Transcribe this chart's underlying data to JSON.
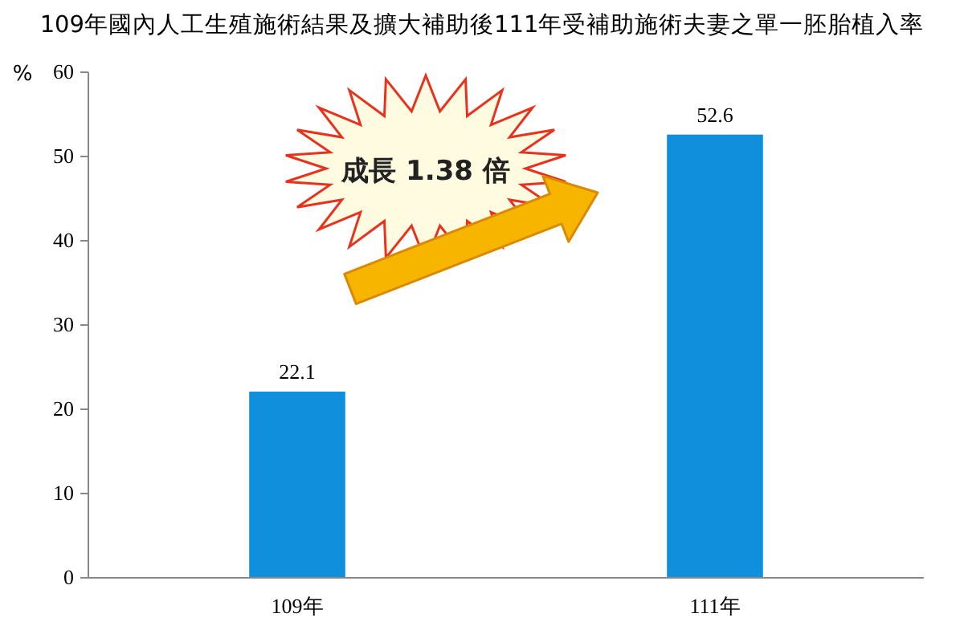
{
  "chart_data": {
    "type": "bar",
    "title": "109年國內人工生殖施術結果及擴大補助後111年受補助施術夫妻之單一胚胎植入率",
    "ylabel": "%",
    "categories": [
      "109年",
      "111年"
    ],
    "values": [
      22.1,
      52.6
    ],
    "color": "#0f8fdc",
    "ylim": [
      0,
      60
    ],
    "yticks": [
      0,
      10,
      20,
      30,
      40,
      50,
      60
    ],
    "grid": false,
    "data_labels": true,
    "annotations": [
      "成長 1.38 倍"
    ]
  }
}
